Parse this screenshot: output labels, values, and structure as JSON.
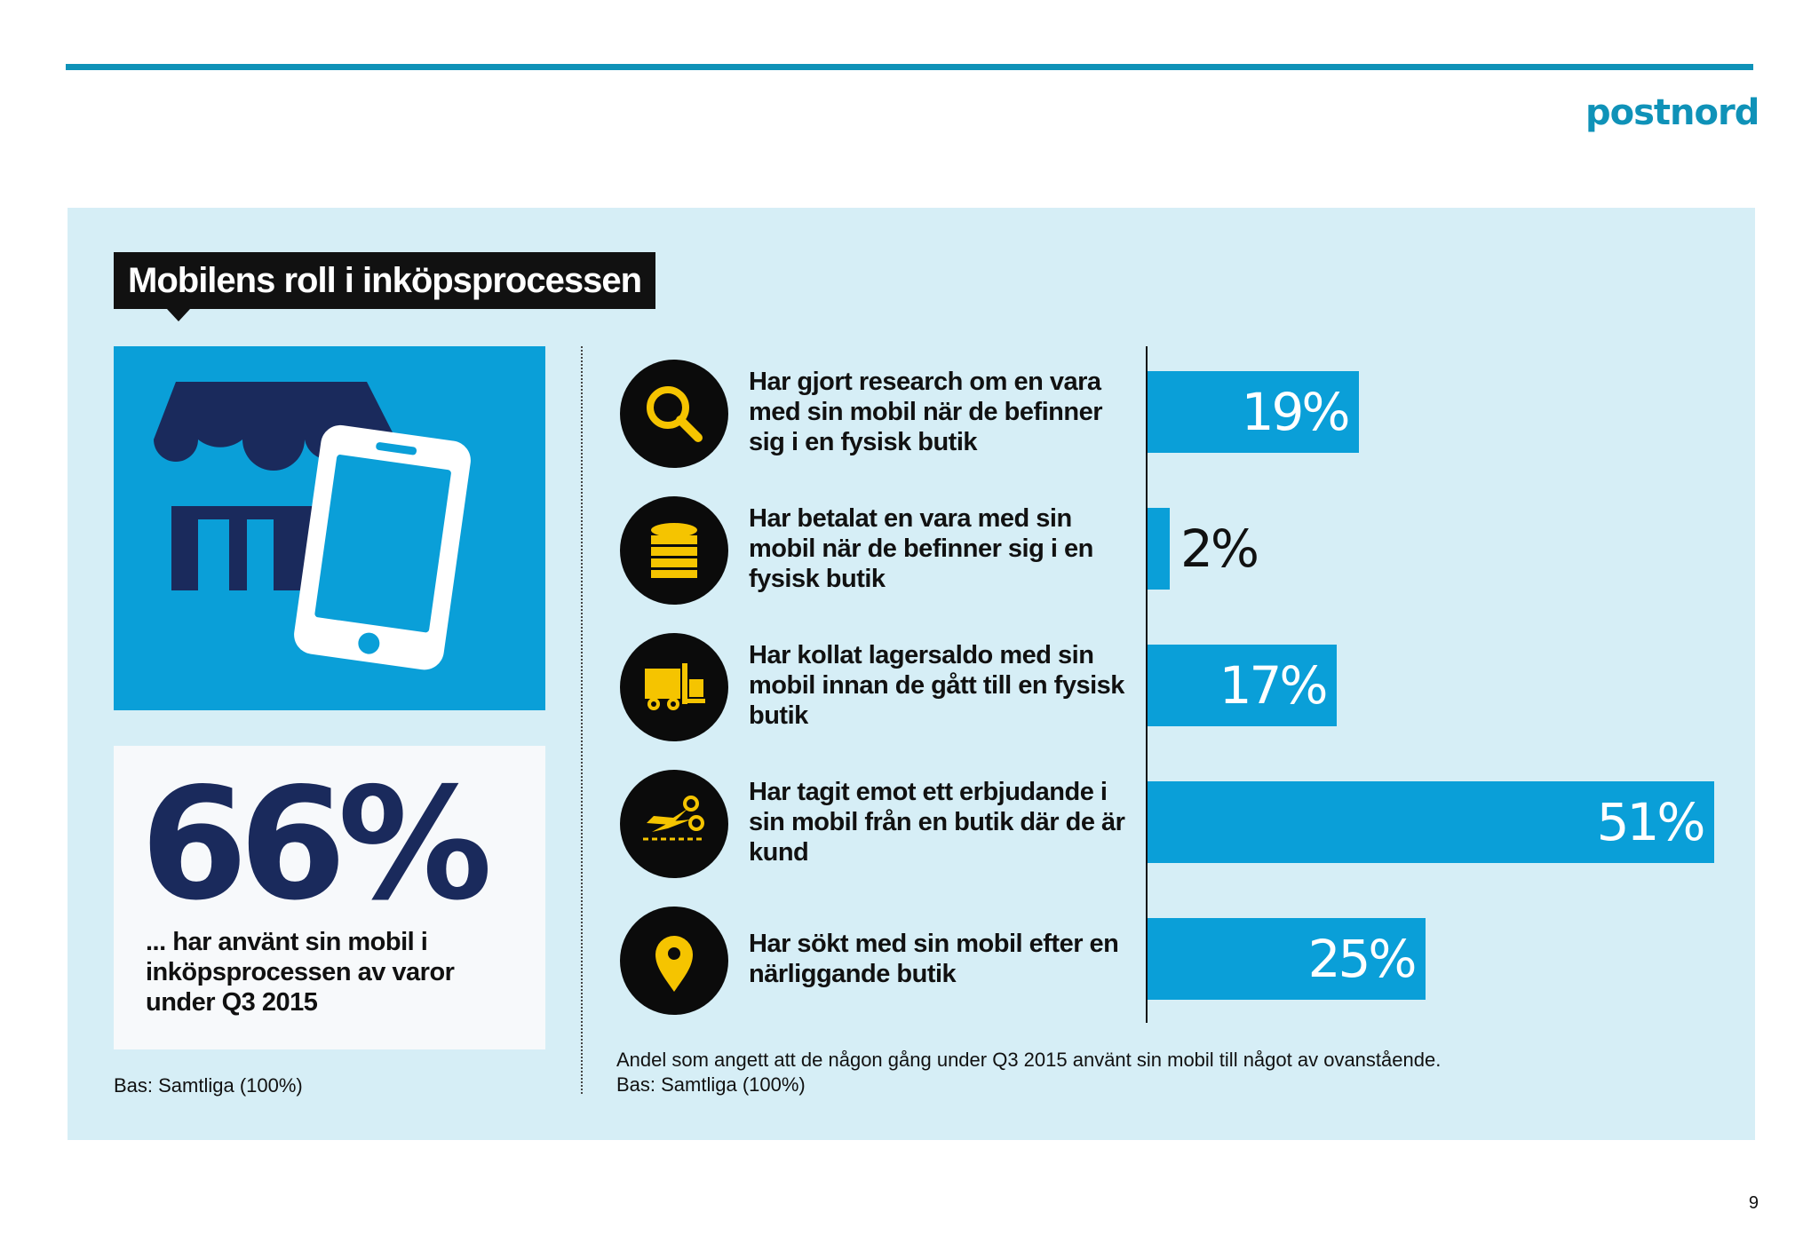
{
  "brand": {
    "logo": "postnord",
    "color": "#0f92b8"
  },
  "title": "Mobilens roll i inköpsprocessen",
  "hero": {
    "icon": "store-with-phone-icon",
    "stat_value": "66%",
    "stat_text": "... har använt sin mobil i inköpsprocessen av varor under Q3 2015",
    "base": "Bas: Samtliga (100%)"
  },
  "chart_data": {
    "type": "bar",
    "orientation": "horizontal",
    "categories": [
      "Har gjort research om en vara med sin mobil när de befinner sig i en fysisk butik",
      "Har betalat en vara med sin mobil när de befinner sig i en fysisk butik",
      "Har kollat lagersaldo med sin mobil innan de gått till en fysisk butik",
      "Har tagit emot ett erbjudande i sin mobil från en butik där de är kund",
      "Har sökt med sin mobil efter en närliggande butik"
    ],
    "values": [
      19,
      2,
      17,
      51,
      25
    ],
    "value_labels": [
      "19%",
      "2%",
      "17%",
      "51%",
      "25%"
    ],
    "icons": [
      "search-icon",
      "coins-icon",
      "forklift-icon",
      "scissors-coupon-icon",
      "location-pin-icon"
    ],
    "xlim": [
      0,
      55
    ],
    "bar_color": "#0a9fd8",
    "grid": false,
    "footnote": "Andel som angett att de någon gång under Q3 2015 använt sin mobil till något av ovanstående.",
    "base": "Bas: Samtliga (100%)"
  },
  "page_number": "9"
}
